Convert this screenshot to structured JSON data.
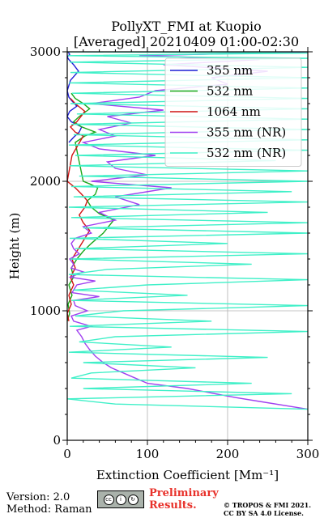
{
  "title_line1": "PollyXT_FMI at Kuopio",
  "title_line2": "[Averaged] 20210409 01:00-02:30",
  "footer": {
    "version": "Version: 2.0",
    "method": "Method: Raman",
    "preliminary_line1": "Preliminary",
    "preliminary_line2": "Results.",
    "copyright_line1": "© TROPOS & FMI 2021.",
    "copyright_line2": "CC BY SA 4.0 License.",
    "license_icon": "cc-by-sa-icon"
  },
  "chart_data": {
    "type": "line",
    "xlabel": "Extinction Coefficient [Mm⁻¹]",
    "ylabel": "Height (m)",
    "xlim": [
      0,
      300
    ],
    "ylim": [
      0,
      3000
    ],
    "xticks": [
      "0",
      "100",
      "200",
      "300"
    ],
    "yticks": [
      "0",
      "1000",
      "2000",
      "3000"
    ],
    "grid": true,
    "legend_position": "top-right",
    "series": [
      {
        "name": "355 nm",
        "color": "#1f1fd6",
        "x": [
          2,
          8,
          15,
          18,
          5,
          0,
          3,
          12,
          6,
          2,
          0,
          4,
          14,
          8,
          2,
          0,
          3,
          1
        ],
        "y": [
          2300,
          2340,
          2380,
          2420,
          2460,
          2500,
          2540,
          2580,
          2620,
          2650,
          2700,
          2780,
          2850,
          2900,
          2940,
          2960,
          2980,
          3000
        ]
      },
      {
        "name": "532 nm",
        "color": "#1aa81a",
        "x": [
          0,
          3,
          1,
          6,
          2,
          8,
          5,
          12,
          20,
          30,
          45,
          58,
          40,
          30,
          25,
          35,
          38,
          28,
          20,
          15,
          10,
          22,
          35,
          18,
          8,
          15,
          28,
          20,
          10,
          5
        ],
        "y": [
          920,
          980,
          1050,
          1120,
          1200,
          1260,
          1330,
          1400,
          1460,
          1520,
          1600,
          1700,
          1750,
          1800,
          1850,
          1900,
          1950,
          1980,
          2000,
          2150,
          2300,
          2350,
          2380,
          2420,
          2460,
          2500,
          2560,
          2600,
          2640,
          2680
        ]
      },
      {
        "name": "1064 nm",
        "color": "#d21414",
        "x": [
          2,
          0,
          5,
          2,
          8,
          4,
          10,
          6,
          14,
          22,
          28,
          20,
          15,
          22,
          25,
          18,
          10,
          4,
          0,
          6,
          20,
          10,
          4,
          12,
          22,
          10,
          4
        ],
        "y": [
          920,
          980,
          1050,
          1120,
          1200,
          1260,
          1330,
          1400,
          1480,
          1560,
          1620,
          1680,
          1740,
          1800,
          1850,
          1900,
          1950,
          1980,
          2000,
          2200,
          2350,
          2380,
          2420,
          2460,
          2540,
          2600,
          2640
        ]
      },
      {
        "name": "355 nm (NR)",
        "color": "#a040f0",
        "x": [
          300,
          240,
          210,
          150,
          100,
          85,
          70,
          55,
          45,
          35,
          28,
          22,
          18,
          12,
          30,
          8,
          5,
          25,
          10,
          8,
          40,
          6,
          12,
          35,
          4,
          20,
          5,
          8,
          3,
          15,
          8,
          5,
          10,
          30,
          20,
          60,
          40,
          90,
          60,
          130,
          30,
          100,
          60,
          50,
          110,
          40,
          20,
          60,
          40,
          80,
          50,
          120,
          30,
          90,
          110,
          200,
          180,
          250,
          120,
          240,
          90,
          300
        ],
        "y": [
          240,
          300,
          330,
          400,
          440,
          480,
          520,
          560,
          600,
          650,
          700,
          750,
          800,
          850,
          880,
          920,
          960,
          1000,
          1040,
          1080,
          1110,
          1140,
          1200,
          1230,
          1260,
          1300,
          1330,
          1360,
          1400,
          1440,
          1480,
          1520,
          1560,
          1600,
          1650,
          1700,
          1760,
          1820,
          1880,
          1950,
          2000,
          2050,
          2100,
          2150,
          2200,
          2250,
          2300,
          2350,
          2400,
          2450,
          2500,
          2550,
          2600,
          2650,
          2700,
          2750,
          2800,
          2850,
          2900,
          2940,
          2970,
          3000
        ]
      },
      {
        "name": "532 nm (NR)",
        "color": "#40f0c8",
        "x": [
          300,
          60,
          0,
          280,
          20,
          230,
          5,
          30,
          160,
          20,
          250,
          2,
          130,
          15,
          60,
          300,
          3,
          180,
          10,
          70,
          300,
          5,
          150,
          8,
          100,
          300,
          2,
          50,
          230,
          4,
          300,
          10,
          200,
          3,
          300,
          20,
          300,
          5,
          250,
          2,
          300,
          8,
          280,
          5,
          300,
          15,
          300,
          3,
          260,
          10,
          300,
          2,
          300,
          8,
          300,
          5,
          300,
          12,
          300,
          4,
          300,
          6,
          300,
          2,
          300,
          4,
          300,
          3,
          300,
          1,
          300,
          0
        ],
        "y": [
          240,
          280,
          320,
          360,
          400,
          440,
          480,
          520,
          560,
          600,
          640,
          680,
          720,
          760,
          800,
          840,
          880,
          920,
          960,
          1000,
          1040,
          1080,
          1120,
          1160,
          1200,
          1240,
          1280,
          1320,
          1360,
          1400,
          1440,
          1480,
          1520,
          1560,
          1600,
          1640,
          1680,
          1720,
          1760,
          1800,
          1840,
          1880,
          1920,
          1960,
          2000,
          2040,
          2080,
          2120,
          2160,
          2200,
          2240,
          2280,
          2320,
          2360,
          2400,
          2440,
          2480,
          2520,
          2560,
          2600,
          2640,
          2680,
          2720,
          2760,
          2800,
          2840,
          2880,
          2920,
          2950,
          2970,
          2990,
          3000
        ]
      }
    ]
  }
}
